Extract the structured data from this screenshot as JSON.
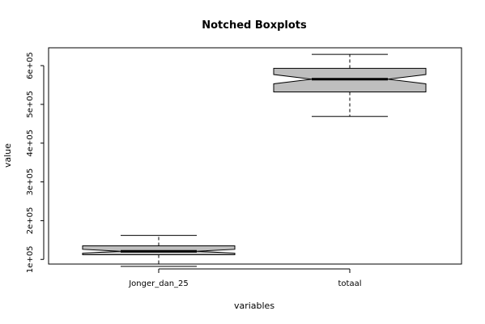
{
  "chart_data": {
    "type": "boxplot",
    "notched": true,
    "title": "Notched Boxplots",
    "xlabel": "variables",
    "ylabel": "value",
    "ylim": [
      88000,
      646000
    ],
    "yticks": [
      100000,
      200000,
      300000,
      400000,
      500000,
      600000
    ],
    "ytick_labels": [
      "1e+05",
      "2e+05",
      "3e+05",
      "4e+05",
      "5e+05",
      "6e+05"
    ],
    "categories": [
      "Jonger_dan_25",
      "totaal"
    ],
    "boxes": [
      {
        "name": "Jonger_dan_25",
        "whisker_low": 82000,
        "q1": 112000,
        "median": 121000,
        "q3": 135000,
        "whisker_high": 162000,
        "notch_low": 116000,
        "notch_high": 126000
      },
      {
        "name": "totaal",
        "whisker_low": 469000,
        "q1": 532000,
        "median": 565000,
        "q3": 593000,
        "whisker_high": 629000,
        "notch_low": 553000,
        "notch_high": 577000
      }
    ],
    "box_fill": "#bebebe",
    "grid": false
  }
}
